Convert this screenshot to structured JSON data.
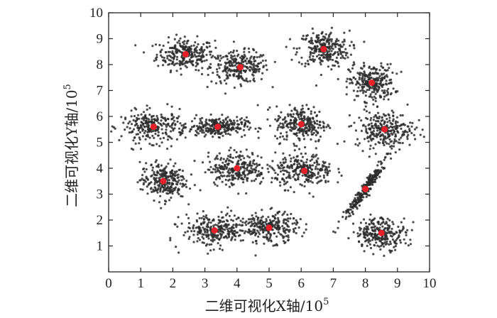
{
  "chart_data": {
    "type": "scatter",
    "title": "",
    "xlabel": "二维可视化X轴/10",
    "ylabel": "二维可视化Y轴/10",
    "axis_exponent": "5",
    "xlim": [
      0,
      10
    ],
    "ylim": [
      0,
      10
    ],
    "x_ticks": [
      "0",
      "1",
      "2",
      "3",
      "4",
      "5",
      "6",
      "7",
      "8",
      "9",
      "10"
    ],
    "y_ticks": [
      "1",
      "2",
      "3",
      "4",
      "5",
      "6",
      "7",
      "8",
      "9",
      "10"
    ],
    "grid": false,
    "legend": "none",
    "point_color": "#2b2b2b",
    "center_color": "#e8202a",
    "clusters": [
      {
        "center": [
          2.4,
          8.4
        ],
        "spread": [
          0.45,
          0.3
        ]
      },
      {
        "center": [
          4.1,
          7.9
        ],
        "spread": [
          0.45,
          0.3
        ]
      },
      {
        "center": [
          6.7,
          8.6
        ],
        "spread": [
          0.4,
          0.35
        ]
      },
      {
        "center": [
          8.2,
          7.3
        ],
        "spread": [
          0.35,
          0.35
        ]
      },
      {
        "center": [
          1.4,
          5.6
        ],
        "spread": [
          0.5,
          0.3
        ]
      },
      {
        "center": [
          3.4,
          5.6
        ],
        "spread": [
          0.45,
          0.18
        ]
      },
      {
        "center": [
          6.0,
          5.7
        ],
        "spread": [
          0.4,
          0.35
        ]
      },
      {
        "center": [
          8.6,
          5.5
        ],
        "spread": [
          0.45,
          0.35
        ]
      },
      {
        "center": [
          1.7,
          3.5
        ],
        "spread": [
          0.35,
          0.35
        ]
      },
      {
        "center": [
          4.0,
          4.0
        ],
        "spread": [
          0.45,
          0.32
        ]
      },
      {
        "center": [
          6.1,
          3.9
        ],
        "spread": [
          0.45,
          0.32
        ]
      },
      {
        "center": [
          8.0,
          3.2
        ],
        "spread": [
          0.08,
          0.6
        ]
      },
      {
        "center": [
          3.3,
          1.6
        ],
        "spread": [
          0.5,
          0.32
        ]
      },
      {
        "center": [
          5.0,
          1.7
        ],
        "spread": [
          0.45,
          0.28
        ]
      },
      {
        "center": [
          8.5,
          1.5
        ],
        "spread": [
          0.4,
          0.3
        ]
      }
    ]
  }
}
